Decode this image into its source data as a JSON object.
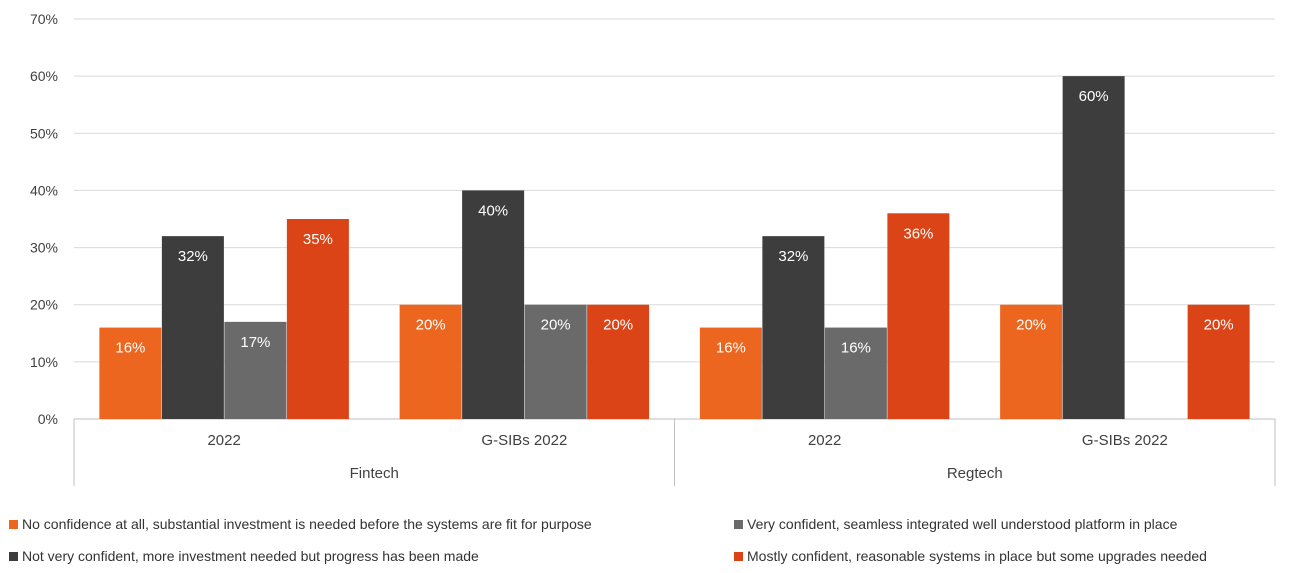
{
  "chart_data": {
    "type": "bar",
    "y_axis": {
      "min": 0,
      "max": 70,
      "step": 10,
      "tick_labels": [
        "0%",
        "10%",
        "20%",
        "30%",
        "40%",
        "50%",
        "60%",
        "70%"
      ],
      "gridlines": true
    },
    "groups": [
      {
        "name": "Fintech",
        "categories": [
          "2022",
          "G-SIBs 2022"
        ]
      },
      {
        "name": "Regtech",
        "categories": [
          "2022",
          "G-SIBs 2022"
        ]
      }
    ],
    "series": [
      {
        "name": "No confidence at all, substantial investment is needed before the systems are fit for purpose",
        "color": "#EC661F",
        "values": [
          16,
          20,
          16,
          20
        ],
        "labels": [
          "16%",
          "20%",
          "16%",
          "20%"
        ]
      },
      {
        "name": "Not very confident, more investment needed but progress has been made",
        "color": "#3D3D3D",
        "values": [
          32,
          40,
          32,
          60
        ],
        "labels": [
          "32%",
          "40%",
          "32%",
          "60%"
        ]
      },
      {
        "name": "Very confident, seamless integrated well understood platform in place",
        "color": "#6A6A6A",
        "values": [
          17,
          20,
          16,
          0
        ],
        "labels": [
          "17%",
          "20%",
          "16%",
          ""
        ]
      },
      {
        "name": "Mostly confident, reasonable systems in place but some upgrades needed",
        "color": "#DA4416",
        "values": [
          35,
          20,
          36,
          20
        ],
        "labels": [
          "35%",
          "20%",
          "36%",
          "20%"
        ]
      }
    ],
    "legend_position": "bottom"
  }
}
